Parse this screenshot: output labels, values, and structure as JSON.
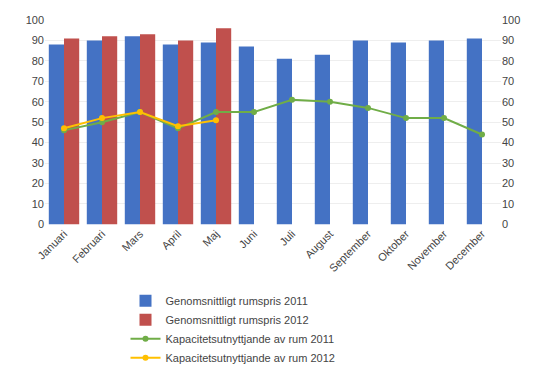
{
  "chart_data": {
    "type": "bar",
    "categories": [
      "Januari",
      "Februari",
      "Mars",
      "April",
      "Maj",
      "Juni",
      "Juli",
      "August",
      "September",
      "Oktober",
      "November",
      "December"
    ],
    "series": [
      {
        "name": "Genomsnittligt rumspris 2011",
        "type": "bar",
        "color": "#4472C4",
        "values": [
          88,
          90,
          92,
          88,
          89,
          87,
          81,
          83,
          90,
          89,
          90,
          91
        ]
      },
      {
        "name": "Genomsnittligt rumspris 2012",
        "type": "bar",
        "color": "#C0504D",
        "values": [
          91,
          92,
          93,
          90,
          96,
          null,
          null,
          null,
          null,
          null,
          null,
          null
        ]
      },
      {
        "name": "Kapacitetsutnyttjande av rum 2011",
        "type": "line",
        "axis": "y2",
        "color": "#70AD47",
        "marker": "circle",
        "values": [
          46,
          50,
          55,
          47,
          55,
          55,
          61,
          60,
          57,
          52,
          52,
          44
        ]
      },
      {
        "name": "Kapacitetsutnyttjande av rum 2012",
        "type": "line",
        "axis": "y2",
        "color": "#FFC000",
        "marker": "circle",
        "values": [
          47,
          52,
          55,
          48,
          51,
          null,
          null,
          null,
          null,
          null,
          null,
          null
        ]
      }
    ],
    "ylim": [
      0,
      100
    ],
    "yticks": [
      0,
      10,
      20,
      30,
      40,
      50,
      60,
      70,
      80,
      90,
      100
    ],
    "y2lim": [
      0,
      100
    ],
    "y2ticks": [
      0,
      10,
      20,
      30,
      40,
      50,
      60,
      70,
      80,
      90,
      100
    ],
    "grid": true,
    "legend": "bottom"
  }
}
